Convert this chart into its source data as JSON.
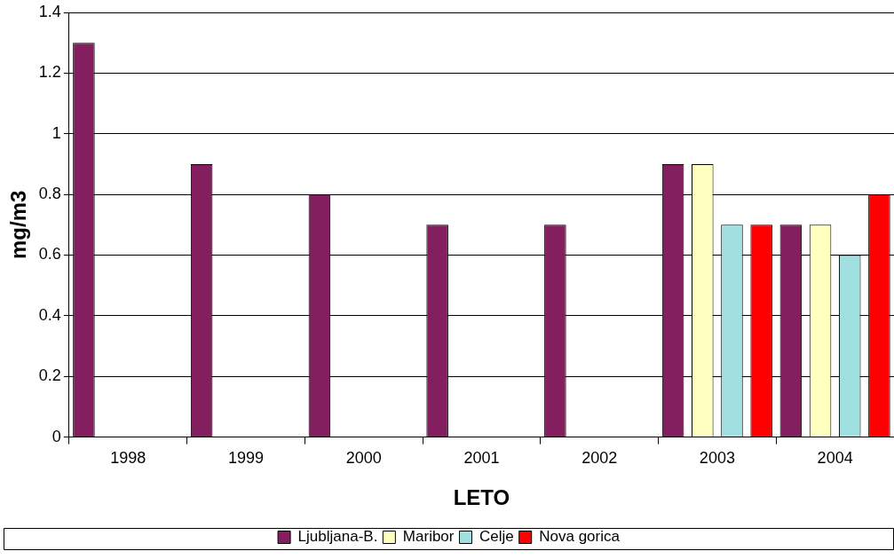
{
  "chart_data": {
    "type": "bar",
    "xlabel": "LETO",
    "ylabel": "mg/m3",
    "categories": [
      "1998",
      "1999",
      "2000",
      "2001",
      "2002",
      "2003",
      "2004"
    ],
    "series": [
      {
        "name": "Ljubljana-B.",
        "color": "#841f5f",
        "values": [
          1.3,
          0.9,
          0.8,
          0.7,
          0.7,
          0.9,
          0.7
        ]
      },
      {
        "name": "Maribor",
        "color": "#ffffc0",
        "values": [
          null,
          null,
          null,
          null,
          null,
          0.9,
          0.7
        ]
      },
      {
        "name": "Celje",
        "color": "#a0e0e0",
        "values": [
          null,
          null,
          null,
          null,
          null,
          0.7,
          0.6
        ]
      },
      {
        "name": "Nova gorica",
        "color": "#ff0000",
        "values": [
          null,
          null,
          null,
          null,
          null,
          0.7,
          0.8
        ]
      }
    ],
    "ylim": [
      0,
      1.4
    ],
    "yticks": [
      0,
      0.2,
      0.4,
      0.6,
      0.8,
      1,
      1.2,
      1.4
    ],
    "grid": "y",
    "legend": "bottom"
  }
}
